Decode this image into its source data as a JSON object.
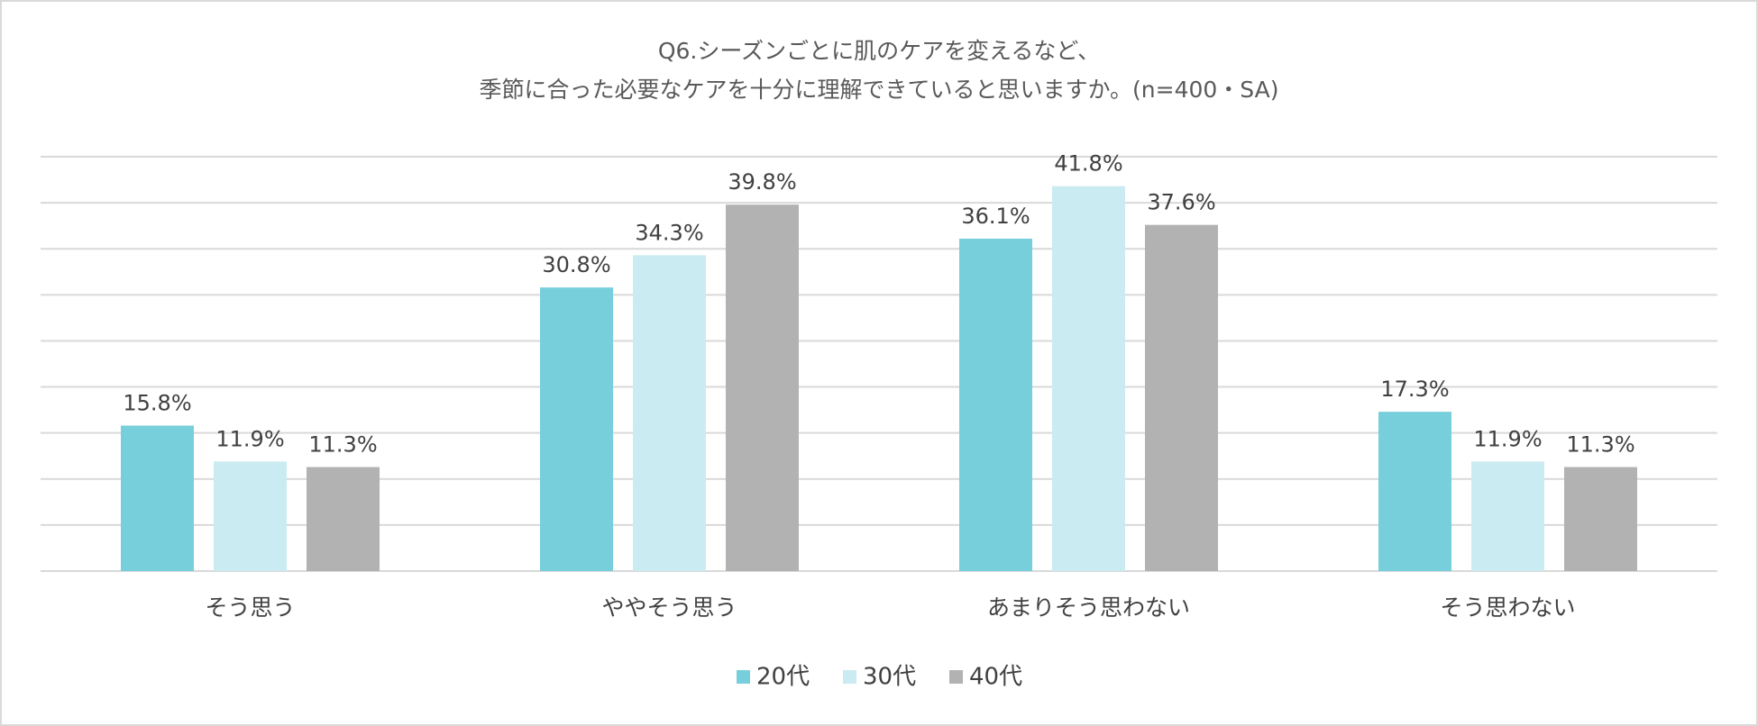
{
  "chart_data": {
    "type": "bar",
    "title": [
      "Q6.シーズンごとに肌のケアを変えるなど、",
      "季節に合った必要なケアを十分に理解できていると思いますか。(n=400・SA)"
    ],
    "categories": [
      "そう思う",
      "ややそう思う",
      "あまりそう思わない",
      "そう思わない"
    ],
    "series": [
      {
        "name": "20代",
        "color": "#76cfdb",
        "values": [
          15.8,
          30.8,
          36.1,
          17.3
        ],
        "value_labels": [
          "15.8%",
          "30.8%",
          "36.1%",
          "17.3%"
        ]
      },
      {
        "name": "30代",
        "color": "#c9ebf1",
        "values": [
          11.9,
          34.3,
          41.8,
          11.9
        ],
        "value_labels": [
          "11.9%",
          "34.3%",
          "41.8%",
          "11.9%"
        ]
      },
      {
        "name": "40代",
        "color": "#b2b2b2",
        "values": [
          11.3,
          39.8,
          37.6,
          11.3
        ],
        "value_labels": [
          "11.3%",
          "39.8%",
          "37.6%",
          "11.3%"
        ]
      }
    ],
    "ylim": [
      0,
      45
    ],
    "yticks": [
      0,
      5,
      10,
      15,
      20,
      25,
      30,
      35,
      40,
      45
    ],
    "grid": true,
    "legend": "bottom"
  }
}
